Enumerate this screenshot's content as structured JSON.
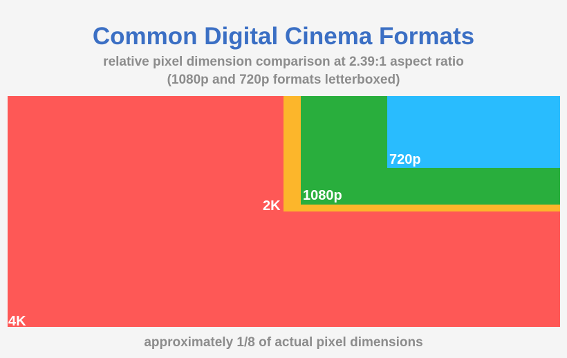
{
  "title": "Common Digital Cinema Formats",
  "subtitle_line1": "relative pixel dimension comparison at 2.39:1 aspect ratio",
  "subtitle_line2": "(1080p and 720p formats letterboxed)",
  "footer": "approximately 1/8 of actual pixel dimensions",
  "formats": [
    {
      "label": "4K",
      "color": "#fe5856"
    },
    {
      "label": "2K",
      "color": "#fcb62b"
    },
    {
      "label": "1080p",
      "color": "#29ae3d"
    },
    {
      "label": "720p",
      "color": "#29bcfe"
    }
  ]
}
